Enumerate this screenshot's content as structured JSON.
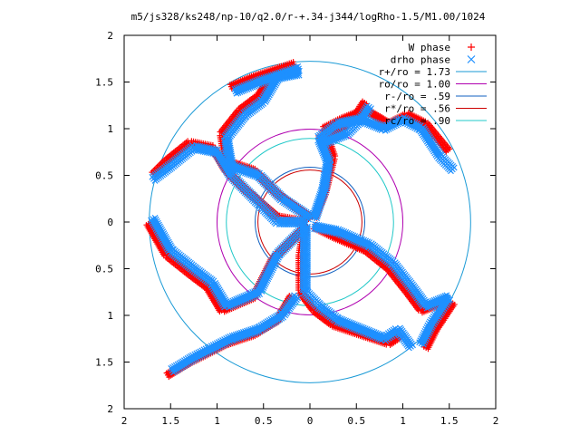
{
  "chart_data": {
    "type": "scatter",
    "title": "m5/js328/ks248/np-10/q2.0/r-+.34-j344/logRho-1.5/M1.00/1024",
    "xlim": [
      -2,
      2
    ],
    "ylim": [
      -2,
      2
    ],
    "x_tick_labels": [
      "2",
      "1.5",
      "1",
      "0.5",
      "0",
      "0.5",
      "1",
      "1.5",
      "2"
    ],
    "y_tick_labels": [
      "2",
      "1.5",
      "1",
      "0.5",
      "0",
      "0.5",
      "1",
      "1.5",
      "2"
    ],
    "x_tick_values": [
      -2,
      -1.5,
      -1,
      -0.5,
      0,
      0.5,
      1,
      1.5,
      2
    ],
    "y_tick_values": [
      2,
      1.5,
      1,
      0.5,
      0,
      -0.5,
      -1,
      -1.5,
      -2
    ],
    "grid": false,
    "legend_position": "top-right",
    "legend": [
      {
        "label": "W phase",
        "marker": "+",
        "color": "#ff0000"
      },
      {
        "label": "drho phase",
        "marker": "x",
        "color": "#1e90ff"
      },
      {
        "label": "r+/ro = 1.73",
        "line": true,
        "color": "#1a9ad6"
      },
      {
        "label": "ro/ro = 1.00",
        "line": true,
        "color": "#b000b0"
      },
      {
        "label": "r-/ro = .59",
        "line": true,
        "color": "#1060c0"
      },
      {
        "label": "r*/ro = .56",
        "line": true,
        "color": "#cc0000"
      },
      {
        "label": "rc/ro = .90",
        "line": true,
        "color": "#20c8c8"
      }
    ],
    "circles": [
      {
        "name": "r+/ro",
        "radius": 1.73,
        "color": "#1a9ad6"
      },
      {
        "name": "ro/ro",
        "radius": 1.0,
        "color": "#b000b0"
      },
      {
        "name": "r-/ro",
        "radius": 0.59,
        "color": "#1060c0"
      },
      {
        "name": "r*/ro",
        "radius": 0.56,
        "color": "#cc0000"
      },
      {
        "name": "rc/ro",
        "radius": 0.9,
        "color": "#20c8c8"
      }
    ],
    "series": [
      {
        "name": "W phase",
        "marker": "+",
        "color": "#ff0000",
        "arms": [
          [
            [
              0.05,
              0.05
            ],
            [
              0.15,
              0.3
            ],
            [
              0.25,
              0.7
            ],
            [
              0.15,
              1.0
            ],
            [
              0.35,
              1.1
            ],
            [
              0.6,
              1.2
            ],
            [
              0.85,
              1.05
            ],
            [
              1.05,
              1.15
            ],
            [
              1.25,
              1.05
            ],
            [
              1.5,
              0.75
            ]
          ],
          [
            [
              0.05,
              -0.05
            ],
            [
              0.25,
              -0.15
            ],
            [
              0.6,
              -0.3
            ],
            [
              0.85,
              -0.5
            ],
            [
              1.05,
              -0.75
            ],
            [
              1.2,
              -0.95
            ],
            [
              1.45,
              -0.85
            ]
          ],
          [
            [
              -0.05,
              -0.05
            ],
            [
              -0.1,
              -0.35
            ],
            [
              -0.1,
              -0.75
            ],
            [
              0.05,
              -0.95
            ],
            [
              0.25,
              -1.1
            ],
            [
              0.55,
              -1.2
            ],
            [
              0.85,
              -1.3
            ],
            [
              1.0,
              -1.2
            ]
          ],
          [
            [
              -0.05,
              0.0
            ],
            [
              -0.35,
              0.05
            ],
            [
              -0.7,
              0.35
            ],
            [
              -0.9,
              0.55
            ],
            [
              -1.05,
              0.8
            ],
            [
              -1.3,
              0.85
            ],
            [
              -1.55,
              0.65
            ],
            [
              -1.7,
              0.5
            ]
          ],
          [
            [
              0.0,
              0.05
            ],
            [
              -0.35,
              0.3
            ],
            [
              -0.6,
              0.55
            ],
            [
              -0.9,
              0.65
            ],
            [
              -0.95,
              0.95
            ],
            [
              -0.75,
              1.2
            ],
            [
              -0.55,
              1.35
            ],
            [
              -0.4,
              1.6
            ]
          ],
          [
            [
              -0.05,
              -0.05
            ],
            [
              -0.4,
              -0.4
            ],
            [
              -0.6,
              -0.8
            ],
            [
              -0.95,
              -0.95
            ],
            [
              -1.1,
              -0.7
            ],
            [
              -1.3,
              -0.55
            ],
            [
              -1.55,
              -0.35
            ],
            [
              -1.75,
              0.0
            ]
          ],
          [
            [
              -0.2,
              -0.8
            ],
            [
              -0.35,
              -1.05
            ],
            [
              -0.6,
              -1.2
            ],
            [
              -0.9,
              -1.3
            ],
            [
              -1.1,
              -1.4
            ],
            [
              -1.3,
              -1.5
            ],
            [
              -1.55,
              -1.65
            ]
          ],
          [
            [
              0.1,
              0.9
            ],
            [
              0.35,
              1.0
            ],
            [
              0.5,
              1.15
            ],
            [
              0.6,
              1.3
            ]
          ],
          [
            [
              -0.85,
              1.45
            ],
            [
              -0.6,
              1.55
            ],
            [
              -0.3,
              1.65
            ],
            [
              -0.15,
              1.7
            ]
          ],
          [
            [
              1.25,
              -1.35
            ],
            [
              1.35,
              -1.15
            ],
            [
              1.45,
              -1.0
            ],
            [
              1.55,
              -0.85
            ]
          ]
        ]
      },
      {
        "name": "drho phase",
        "marker": "x",
        "color": "#1e90ff",
        "arms": [
          [
            [
              0.05,
              0.05
            ],
            [
              0.15,
              0.35
            ],
            [
              0.2,
              0.65
            ],
            [
              0.1,
              0.9
            ],
            [
              0.3,
              1.05
            ],
            [
              0.55,
              1.1
            ],
            [
              0.8,
              1.0
            ],
            [
              1.0,
              1.1
            ],
            [
              1.2,
              1.0
            ],
            [
              1.4,
              0.7
            ],
            [
              1.55,
              0.55
            ]
          ],
          [
            [
              0.05,
              -0.05
            ],
            [
              0.3,
              -0.1
            ],
            [
              0.65,
              -0.25
            ],
            [
              0.9,
              -0.45
            ],
            [
              1.1,
              -0.7
            ],
            [
              1.25,
              -0.9
            ],
            [
              1.5,
              -0.8
            ]
          ],
          [
            [
              -0.05,
              -0.05
            ],
            [
              -0.05,
              -0.35
            ],
            [
              -0.05,
              -0.75
            ],
            [
              0.1,
              -0.9
            ],
            [
              0.3,
              -1.05
            ],
            [
              0.55,
              -1.15
            ],
            [
              0.8,
              -1.25
            ],
            [
              0.95,
              -1.15
            ],
            [
              1.1,
              -1.35
            ]
          ],
          [
            [
              -0.05,
              0.0
            ],
            [
              -0.35,
              0.0
            ],
            [
              -0.65,
              0.3
            ],
            [
              -0.85,
              0.5
            ],
            [
              -1.0,
              0.75
            ],
            [
              -1.25,
              0.8
            ],
            [
              -1.5,
              0.6
            ],
            [
              -1.7,
              0.45
            ]
          ],
          [
            [
              0.0,
              0.05
            ],
            [
              -0.3,
              0.25
            ],
            [
              -0.55,
              0.5
            ],
            [
              -0.85,
              0.6
            ],
            [
              -0.9,
              0.9
            ],
            [
              -0.7,
              1.15
            ],
            [
              -0.5,
              1.3
            ],
            [
              -0.35,
              1.55
            ],
            [
              -0.1,
              1.6
            ]
          ],
          [
            [
              -0.05,
              -0.05
            ],
            [
              -0.35,
              -0.35
            ],
            [
              -0.55,
              -0.75
            ],
            [
              -0.9,
              -0.9
            ],
            [
              -1.05,
              -0.65
            ],
            [
              -1.25,
              -0.5
            ],
            [
              -1.5,
              -0.3
            ],
            [
              -1.7,
              0.05
            ]
          ],
          [
            [
              -0.15,
              -0.8
            ],
            [
              -0.3,
              -1.0
            ],
            [
              -0.55,
              -1.15
            ],
            [
              -0.85,
              -1.25
            ],
            [
              -1.05,
              -1.35
            ],
            [
              -1.25,
              -1.45
            ],
            [
              -1.5,
              -1.6
            ]
          ],
          [
            [
              0.15,
              0.85
            ],
            [
              0.4,
              0.95
            ],
            [
              0.55,
              1.1
            ],
            [
              0.65,
              1.25
            ]
          ],
          [
            [
              -0.8,
              1.4
            ],
            [
              -0.55,
              1.5
            ],
            [
              -0.25,
              1.6
            ],
            [
              -0.1,
              1.65
            ]
          ],
          [
            [
              1.2,
              -1.3
            ],
            [
              1.3,
              -1.1
            ],
            [
              1.4,
              -0.95
            ],
            [
              1.5,
              -0.8
            ]
          ]
        ]
      }
    ]
  }
}
